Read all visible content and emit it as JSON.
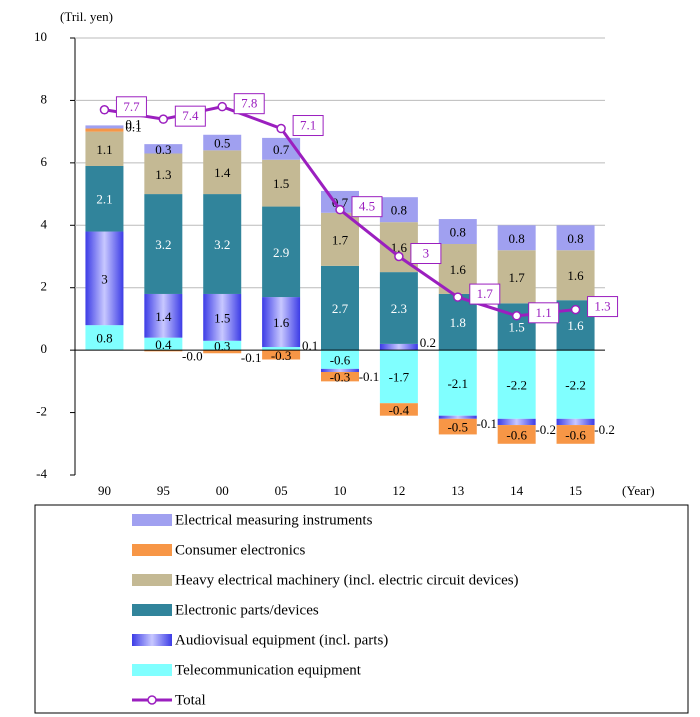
{
  "chart_data": {
    "type": "bar",
    "stacked": true,
    "y_label": "(Tril. yen)",
    "x_label": "(Year)",
    "categories": [
      "90",
      "95",
      "00",
      "05",
      "10",
      "12",
      "13",
      "14",
      "15"
    ],
    "ylim": [
      -4,
      10
    ],
    "yticks": [
      -4,
      -2,
      0,
      2,
      4,
      6,
      8,
      10
    ],
    "grid": true,
    "series": [
      {
        "name": "Telecommunication equipment",
        "color": "#80ffff",
        "values": [
          0.8,
          0.4,
          0.3,
          0.1,
          -0.6,
          -1.7,
          -2.1,
          -2.2,
          -2.2
        ]
      },
      {
        "name": "Audiovisual equipment (incl. parts)",
        "color": "#3c3ce6",
        "gradient": true,
        "values": [
          3.0,
          1.4,
          1.5,
          1.6,
          -0.1,
          0.2,
          -0.1,
          -0.2,
          -0.2
        ]
      },
      {
        "name": "Electronic parts/devices",
        "color": "#31849b",
        "values": [
          2.1,
          3.2,
          3.2,
          2.9,
          2.7,
          2.3,
          1.8,
          1.5,
          1.6
        ]
      },
      {
        "name": "Heavy electrical machinery  (incl. electric circuit devices)",
        "color": "#c4b994",
        "values": [
          1.1,
          1.3,
          1.4,
          1.5,
          1.7,
          1.6,
          1.6,
          1.7,
          1.6
        ]
      },
      {
        "name": "Consumer electronics",
        "color": "#f79646",
        "values": [
          0.1,
          -0.04,
          -0.1,
          -0.3,
          -0.3,
          -0.4,
          -0.5,
          -0.6,
          -0.6
        ],
        "value_labels": [
          "0.1",
          "-0.0",
          "-0.1",
          "-0.3",
          "-0.3",
          "-0.4",
          "-0.5",
          "-0.6",
          "-0.6"
        ]
      },
      {
        "name": "Electrical measuring instruments",
        "color": "#a0a0f0",
        "values": [
          0.1,
          0.3,
          0.5,
          0.7,
          0.7,
          0.8,
          0.8,
          0.8,
          0.8
        ]
      }
    ],
    "line": {
      "name": "Total",
      "color": "#9b1fbf",
      "values": [
        7.7,
        7.4,
        7.8,
        7.1,
        4.5,
        3.0,
        1.7,
        1.1,
        1.3
      ]
    }
  }
}
